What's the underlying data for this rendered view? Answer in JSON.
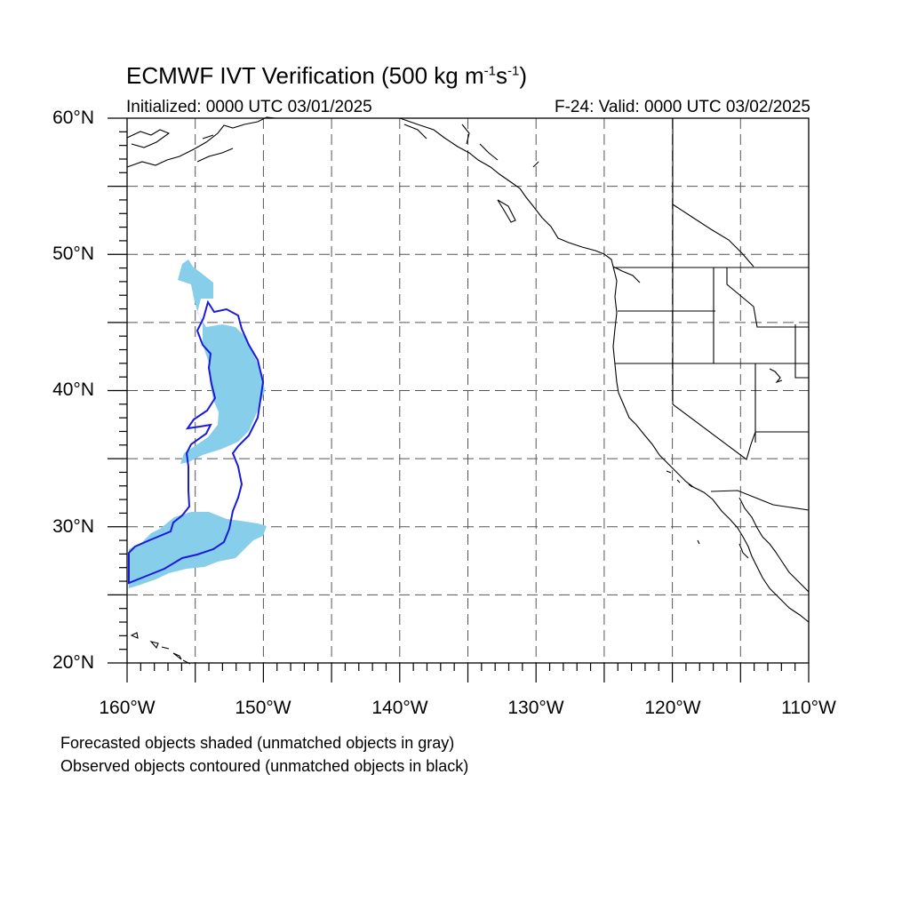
{
  "title": {
    "main": "ECMWF IVT Verification (500 kg m",
    "sup1": "-1",
    "mid": "s",
    "sup2": "-1",
    "end": ")"
  },
  "subtitle": {
    "initialized": "Initialized: 0000 UTC 03/01/2025",
    "valid": "F-24: Valid: 0000 UTC 03/02/2025"
  },
  "map": {
    "projection": "cylindrical equidistant",
    "lon_range": [
      -160,
      -110
    ],
    "lat_range": [
      20,
      60
    ],
    "grid_spacing_deg": 5,
    "grid_style": "dashed",
    "lat_labels": [
      "60°N",
      "50°N",
      "40°N",
      "30°N",
      "20°N"
    ],
    "lon_labels": [
      "160°W",
      "150°W",
      "140°W",
      "130°W",
      "120°W",
      "110°W"
    ]
  },
  "colors": {
    "forecast_fill": "#87ceeb",
    "observed_contour": "#1a1adb",
    "coastline": "#000000",
    "grid": "#555555"
  },
  "notes": [
    "Forecasted objects shaded (unmatched objects in gray)",
    "Observed objects contoured (unmatched objects in black)"
  ]
}
